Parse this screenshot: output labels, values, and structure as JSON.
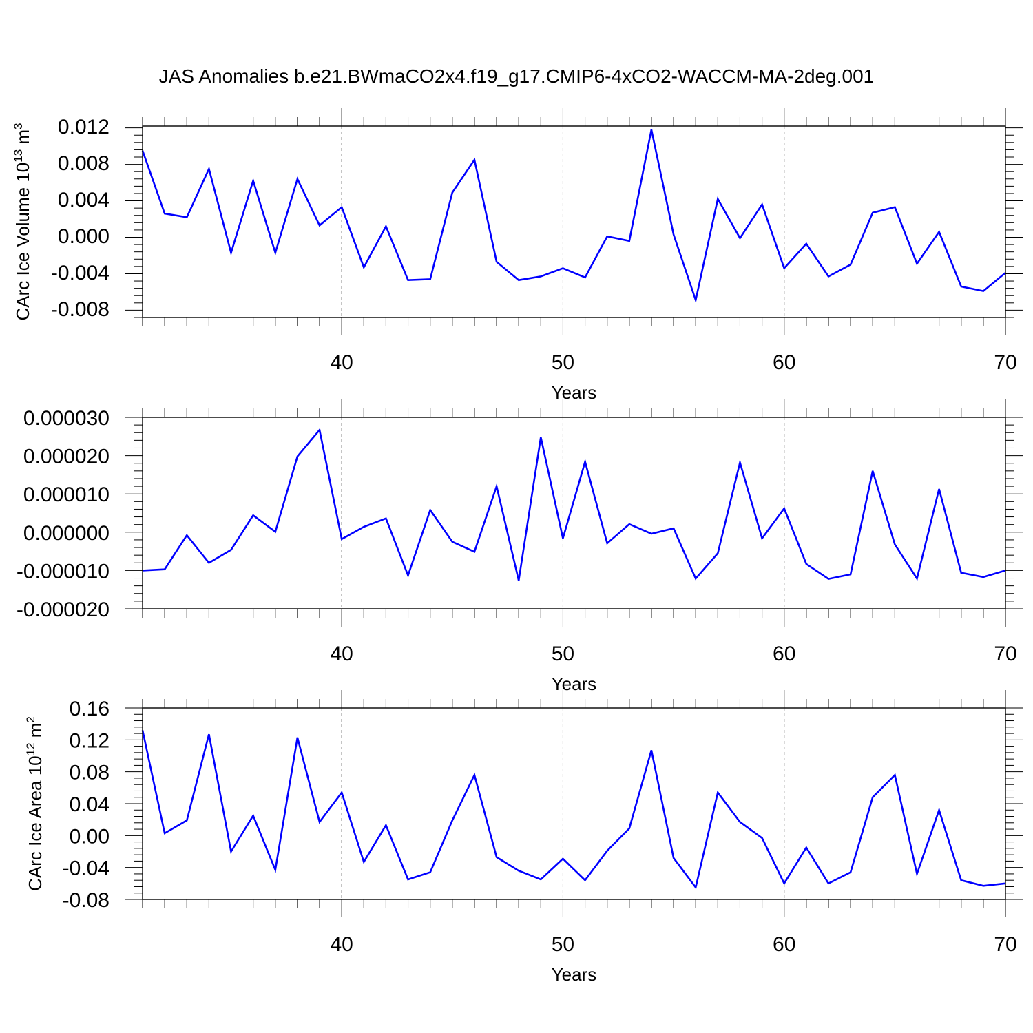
{
  "title": "JAS Anomalies b.e21.BWmaCO2x4.f19_g17.CMIP6-4xCO2-WACCM-MA-2deg.001",
  "line_color": "#0000ff",
  "chart_data": [
    {
      "type": "line",
      "ylabel": "CArc Ice Volume 10",
      "ylabel_exp": "13",
      "ylabel_unit": " m",
      "ylabel_unit_exp": "3",
      "xlabel": "Years",
      "xlim": [
        31,
        70
      ],
      "ylim": [
        -0.009,
        0.012
      ],
      "xticks": [
        40,
        50,
        60,
        70
      ],
      "xtick_labels": [
        "40",
        "50",
        "60",
        "70"
      ],
      "yticks": [
        -0.008,
        -0.004,
        0.0,
        0.004,
        0.008,
        0.012
      ],
      "ytick_labels": [
        "-0.008",
        "-0.004",
        "0.000",
        "0.004",
        "0.008",
        "0.012"
      ],
      "x": [
        31,
        32,
        33,
        34,
        35,
        36,
        37,
        38,
        39,
        40,
        41,
        42,
        43,
        44,
        45,
        46,
        47,
        48,
        49,
        50,
        51,
        52,
        53,
        54,
        55,
        56,
        57,
        58,
        59,
        60,
        61,
        62,
        63,
        64,
        65,
        66,
        67,
        68,
        69,
        70
      ],
      "series": [
        {
          "values": [
            0.0093,
            0.0024,
            0.002,
            0.0073,
            -0.0019,
            0.006,
            -0.0019,
            0.0062,
            0.0011,
            0.0031,
            -0.0035,
            0.001,
            -0.0049,
            -0.0048,
            0.0047,
            0.0083,
            -0.0029,
            -0.0049,
            -0.0045,
            -0.0036,
            -0.0046,
            -0.0001,
            -0.0006,
            0.0116,
            0.0001,
            -0.0071,
            0.004,
            -0.0003,
            0.0034,
            -0.0036,
            -0.0009,
            -0.0045,
            -0.0032,
            0.0025,
            0.0031,
            -0.0031,
            0.0004,
            -0.0056,
            -0.0061,
            -0.0041
          ]
        }
      ]
    },
    {
      "type": "line",
      "ylabel": "",
      "xlabel": "Years",
      "xlim": [
        31,
        70
      ],
      "ylim": [
        -2e-05,
        3e-05
      ],
      "xticks": [
        40,
        50,
        60,
        70
      ],
      "xtick_labels": [
        "40",
        "50",
        "60",
        "70"
      ],
      "yticks": [
        -2e-05,
        -1e-05,
        0.0,
        1e-05,
        2e-05,
        3e-05
      ],
      "ytick_labels": [
        "-0.000020",
        "-0.000010",
        "0.000000",
        "0.000010",
        "0.000020",
        "0.000030"
      ],
      "x": [
        31,
        32,
        33,
        34,
        35,
        36,
        37,
        38,
        39,
        40,
        41,
        42,
        43,
        44,
        45,
        46,
        47,
        48,
        49,
        50,
        51,
        52,
        53,
        54,
        55,
        56,
        57,
        58,
        59,
        60,
        61,
        62,
        63,
        64,
        65,
        66,
        67,
        68,
        69,
        70
      ],
      "series": [
        {
          "values": [
            -1e-05,
            -9.7e-06,
            -8e-07,
            -8e-06,
            -4.6e-06,
            4.4e-06,
            1e-07,
            1.98e-05,
            2.67e-05,
            -1.8e-06,
            1.4e-06,
            3.6e-06,
            -1.13e-05,
            5.8e-06,
            -2.5e-06,
            -5.1e-06,
            1.2e-05,
            -1.26e-05,
            2.48e-05,
            -1.6e-06,
            1.84e-05,
            -2.9e-06,
            2.1e-06,
            -4e-07,
            1e-06,
            -1.21e-05,
            -5.5e-06,
            1.82e-05,
            -1.6e-06,
            6.2e-06,
            -8.3e-06,
            -1.22e-05,
            -1.1e-05,
            1.6e-05,
            -3.2e-06,
            -1.21e-05,
            1.13e-05,
            -1.06e-05,
            -1.17e-05,
            -1e-05
          ]
        }
      ]
    },
    {
      "type": "line",
      "ylabel": "CArc Ice Area 10",
      "ylabel_exp": "12",
      "ylabel_unit": " m",
      "ylabel_unit_exp": "2",
      "xlabel": "Years",
      "xlim": [
        31,
        70
      ],
      "ylim": [
        -0.08,
        0.16
      ],
      "xticks": [
        40,
        50,
        60,
        70
      ],
      "xtick_labels": [
        "40",
        "50",
        "60",
        "70"
      ],
      "yticks": [
        -0.08,
        -0.04,
        0.0,
        0.04,
        0.08,
        0.12,
        0.16
      ],
      "ytick_labels": [
        "-0.08",
        "-0.04",
        "0.00",
        "0.04",
        "0.08",
        "0.12",
        "0.16"
      ],
      "x": [
        31,
        32,
        33,
        34,
        35,
        36,
        37,
        38,
        39,
        40,
        41,
        42,
        43,
        44,
        45,
        46,
        47,
        48,
        49,
        50,
        51,
        52,
        53,
        54,
        55,
        56,
        57,
        58,
        59,
        60,
        61,
        62,
        63,
        64,
        65,
        66,
        67,
        68,
        69,
        70
      ],
      "series": [
        {
          "values": [
            0.132,
            0.003,
            0.019,
            0.127,
            -0.02,
            0.025,
            -0.043,
            0.123,
            0.017,
            0.054,
            -0.033,
            0.013,
            -0.055,
            -0.046,
            0.019,
            0.076,
            -0.027,
            -0.044,
            -0.055,
            -0.029,
            -0.056,
            -0.019,
            0.009,
            0.107,
            -0.028,
            -0.065,
            0.054,
            0.017,
            -0.003,
            -0.06,
            -0.015,
            -0.06,
            -0.046,
            0.048,
            0.076,
            -0.048,
            0.032,
            -0.056,
            -0.063,
            -0.06
          ]
        }
      ]
    }
  ]
}
